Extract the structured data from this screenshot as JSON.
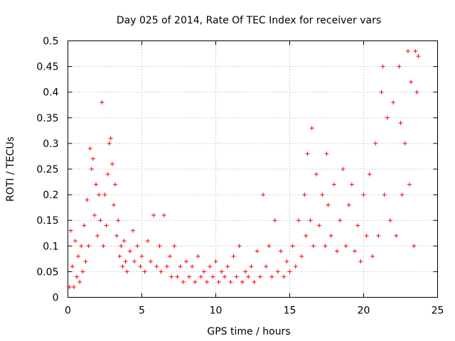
{
  "chart_data": {
    "type": "scatter",
    "title": "Day 025 of 2014, Rate Of TEC Index for receiver vars",
    "xlabel": "GPS time / hours",
    "ylabel": "ROTI / TECUs",
    "xlim": [
      0,
      25
    ],
    "ylim": [
      0,
      0.5
    ],
    "xticks": [
      0,
      5,
      10,
      15,
      20,
      25
    ],
    "xtick_labels": [
      "0",
      "5",
      "10",
      "15",
      "20",
      "25"
    ],
    "yticks": [
      0,
      0.05,
      0.1,
      0.15,
      0.2,
      0.25,
      0.3,
      0.35,
      0.4,
      0.45,
      0.5
    ],
    "ytick_labels": [
      "0",
      "0.05",
      "0.1",
      "0.15",
      "0.2",
      "0.25",
      "0.3",
      "0.35",
      "0.4",
      "0.45",
      "0.5"
    ],
    "grid": true,
    "marker": "+",
    "color": "#ff0000",
    "series": [
      {
        "name": "ROTI",
        "points": [
          [
            0.1,
            0.02
          ],
          [
            0.2,
            0.13
          ],
          [
            0.3,
            0.06
          ],
          [
            0.4,
            0.02
          ],
          [
            0.5,
            0.11
          ],
          [
            0.6,
            0.04
          ],
          [
            0.7,
            0.08
          ],
          [
            0.8,
            0.03
          ],
          [
            0.9,
            0.1
          ],
          [
            1.0,
            0.05
          ],
          [
            1.1,
            0.14
          ],
          [
            1.2,
            0.07
          ],
          [
            1.3,
            0.19
          ],
          [
            1.4,
            0.1
          ],
          [
            1.5,
            0.29
          ],
          [
            1.6,
            0.25
          ],
          [
            1.7,
            0.27
          ],
          [
            1.8,
            0.16
          ],
          [
            1.9,
            0.22
          ],
          [
            2.0,
            0.12
          ],
          [
            2.1,
            0.2
          ],
          [
            2.2,
            0.15
          ],
          [
            2.3,
            0.38
          ],
          [
            2.4,
            0.1
          ],
          [
            2.5,
            0.2
          ],
          [
            2.6,
            0.14
          ],
          [
            2.7,
            0.24
          ],
          [
            2.8,
            0.3
          ],
          [
            2.9,
            0.31
          ],
          [
            3.0,
            0.26
          ],
          [
            3.1,
            0.18
          ],
          [
            3.2,
            0.22
          ],
          [
            3.3,
            0.12
          ],
          [
            3.4,
            0.15
          ],
          [
            3.5,
            0.08
          ],
          [
            3.6,
            0.1
          ],
          [
            3.7,
            0.06
          ],
          [
            3.8,
            0.11
          ],
          [
            3.9,
            0.07
          ],
          [
            4.0,
            0.05
          ],
          [
            4.2,
            0.09
          ],
          [
            4.4,
            0.13
          ],
          [
            4.5,
            0.07
          ],
          [
            4.7,
            0.1
          ],
          [
            4.9,
            0.06
          ],
          [
            5.0,
            0.08
          ],
          [
            5.2,
            0.05
          ],
          [
            5.4,
            0.11
          ],
          [
            5.6,
            0.07
          ],
          [
            5.8,
            0.16
          ],
          [
            6.0,
            0.06
          ],
          [
            6.2,
            0.1
          ],
          [
            6.3,
            0.05
          ],
          [
            6.5,
            0.16
          ],
          [
            6.7,
            0.06
          ],
          [
            6.9,
            0.08
          ],
          [
            7.0,
            0.04
          ],
          [
            7.2,
            0.1
          ],
          [
            7.4,
            0.04
          ],
          [
            7.6,
            0.06
          ],
          [
            7.8,
            0.03
          ],
          [
            8.0,
            0.07
          ],
          [
            8.2,
            0.04
          ],
          [
            8.4,
            0.06
          ],
          [
            8.6,
            0.03
          ],
          [
            8.8,
            0.08
          ],
          [
            9.0,
            0.04
          ],
          [
            9.2,
            0.05
          ],
          [
            9.4,
            0.03
          ],
          [
            9.6,
            0.06
          ],
          [
            9.8,
            0.04
          ],
          [
            10.0,
            0.07
          ],
          [
            10.2,
            0.03
          ],
          [
            10.4,
            0.05
          ],
          [
            10.6,
            0.04
          ],
          [
            10.8,
            0.06
          ],
          [
            11.0,
            0.03
          ],
          [
            11.2,
            0.08
          ],
          [
            11.4,
            0.04
          ],
          [
            11.6,
            0.1
          ],
          [
            11.8,
            0.03
          ],
          [
            12.0,
            0.05
          ],
          [
            12.2,
            0.04
          ],
          [
            12.4,
            0.06
          ],
          [
            12.6,
            0.03
          ],
          [
            12.8,
            0.09
          ],
          [
            13.0,
            0.04
          ],
          [
            13.2,
            0.2
          ],
          [
            13.4,
            0.06
          ],
          [
            13.6,
            0.1
          ],
          [
            13.8,
            0.04
          ],
          [
            14.0,
            0.15
          ],
          [
            14.2,
            0.05
          ],
          [
            14.4,
            0.09
          ],
          [
            14.6,
            0.04
          ],
          [
            14.8,
            0.07
          ],
          [
            15.0,
            0.05
          ],
          [
            15.2,
            0.1
          ],
          [
            15.4,
            0.06
          ],
          [
            15.6,
            0.15
          ],
          [
            15.8,
            0.08
          ],
          [
            16.0,
            0.2
          ],
          [
            16.1,
            0.12
          ],
          [
            16.2,
            0.28
          ],
          [
            16.4,
            0.15
          ],
          [
            16.5,
            0.33
          ],
          [
            16.6,
            0.1
          ],
          [
            16.8,
            0.24
          ],
          [
            17.0,
            0.14
          ],
          [
            17.2,
            0.2
          ],
          [
            17.4,
            0.1
          ],
          [
            17.5,
            0.28
          ],
          [
            17.6,
            0.18
          ],
          [
            17.8,
            0.12
          ],
          [
            18.0,
            0.22
          ],
          [
            18.2,
            0.09
          ],
          [
            18.4,
            0.15
          ],
          [
            18.6,
            0.25
          ],
          [
            18.8,
            0.1
          ],
          [
            19.0,
            0.18
          ],
          [
            19.2,
            0.22
          ],
          [
            19.4,
            0.09
          ],
          [
            19.6,
            0.14
          ],
          [
            19.8,
            0.07
          ],
          [
            20.0,
            0.2
          ],
          [
            20.2,
            0.12
          ],
          [
            20.4,
            0.24
          ],
          [
            20.6,
            0.08
          ],
          [
            20.8,
            0.3
          ],
          [
            21.0,
            0.12
          ],
          [
            21.2,
            0.4
          ],
          [
            21.3,
            0.45
          ],
          [
            21.4,
            0.2
          ],
          [
            21.6,
            0.35
          ],
          [
            21.8,
            0.15
          ],
          [
            22.0,
            0.38
          ],
          [
            22.2,
            0.12
          ],
          [
            22.4,
            0.45
          ],
          [
            22.5,
            0.34
          ],
          [
            22.6,
            0.2
          ],
          [
            22.8,
            0.3
          ],
          [
            23.0,
            0.48
          ],
          [
            23.1,
            0.22
          ],
          [
            23.2,
            0.42
          ],
          [
            23.4,
            0.1
          ],
          [
            23.5,
            0.48
          ],
          [
            23.6,
            0.4
          ],
          [
            23.7,
            0.47
          ]
        ]
      }
    ]
  }
}
